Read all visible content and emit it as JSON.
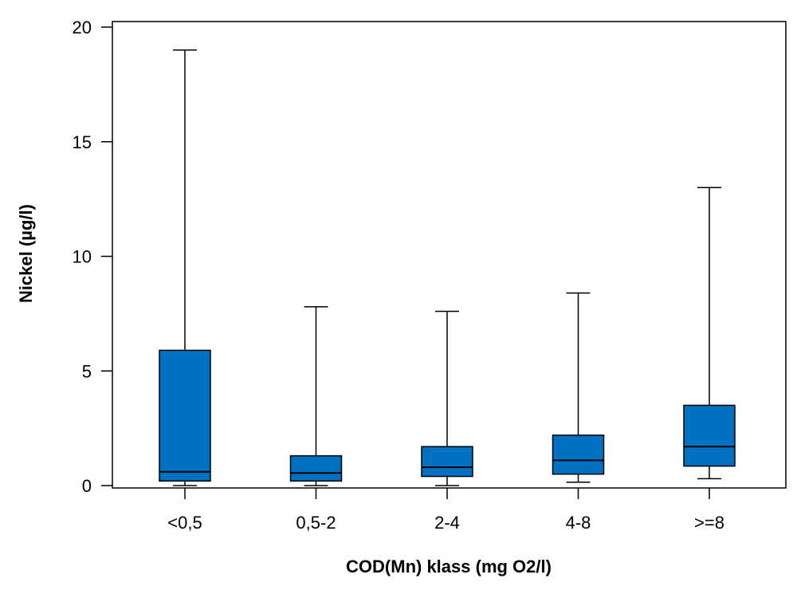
{
  "chart_data": {
    "type": "boxplot",
    "xlabel": "COD(Mn) klass (mg O2/l)",
    "ylabel": "Nickel (µg/l)",
    "ylim": [
      0,
      20
    ],
    "yticks": [
      0,
      5,
      10,
      15,
      20
    ],
    "ytick_labels": [
      "0",
      "5",
      "10",
      "15",
      "20"
    ],
    "grid": false,
    "box_color": "#0070c0",
    "categories": [
      "<0,5",
      "0,5-2",
      "2-4",
      "4-8",
      ">=8"
    ],
    "boxes": [
      {
        "category": "<0,5",
        "min": 0.0,
        "q1": 0.2,
        "median": 0.6,
        "q3": 5.9,
        "max": 19.0
      },
      {
        "category": "0,5-2",
        "min": 0.0,
        "q1": 0.2,
        "median": 0.55,
        "q3": 1.3,
        "max": 7.8
      },
      {
        "category": "2-4",
        "min": 0.0,
        "q1": 0.4,
        "median": 0.8,
        "q3": 1.7,
        "max": 7.6
      },
      {
        "category": "4-8",
        "min": 0.15,
        "q1": 0.5,
        "median": 1.1,
        "q3": 2.2,
        "max": 8.4
      },
      {
        "category": ">=8",
        "min": 0.3,
        "q1": 0.85,
        "median": 1.7,
        "q3": 3.5,
        "max": 13.0
      }
    ]
  }
}
